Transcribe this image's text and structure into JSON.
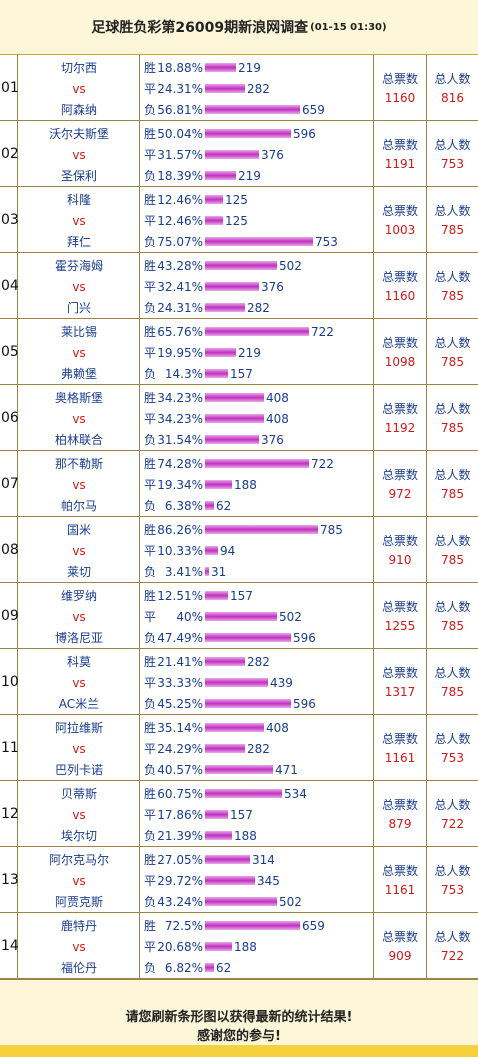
{
  "header": {
    "title": "足球胜负彩第26009期新浪网调查",
    "time": "(01-15 01:30)"
  },
  "labels": {
    "win": "胜",
    "draw": "平",
    "lose": "负",
    "vs": "vs",
    "total_votes": "总票数",
    "total_people": "总人数"
  },
  "matches": [
    {
      "num": "01",
      "home": "切尔西",
      "away": "阿森纳",
      "win_pct": "18.88%",
      "win_n": 219,
      "draw_pct": "24.31%",
      "draw_n": 282,
      "lose_pct": "56.81%",
      "lose_n": 659,
      "total": "1160",
      "people": "816"
    },
    {
      "num": "02",
      "home": "沃尔夫斯堡",
      "away": "圣保利",
      "win_pct": "50.04%",
      "win_n": 596,
      "draw_pct": "31.57%",
      "draw_n": 376,
      "lose_pct": "18.39%",
      "lose_n": 219,
      "total": "1191",
      "people": "753"
    },
    {
      "num": "03",
      "home": "科隆",
      "away": "拜仁",
      "win_pct": "12.46%",
      "win_n": 125,
      "draw_pct": "12.46%",
      "draw_n": 125,
      "lose_pct": "75.07%",
      "lose_n": 753,
      "total": "1003",
      "people": "785"
    },
    {
      "num": "04",
      "home": "霍芬海姆",
      "away": "门兴",
      "win_pct": "43.28%",
      "win_n": 502,
      "draw_pct": "32.41%",
      "draw_n": 376,
      "lose_pct": "24.31%",
      "lose_n": 282,
      "total": "1160",
      "people": "785"
    },
    {
      "num": "05",
      "home": "莱比锡",
      "away": "弗赖堡",
      "win_pct": "65.76%",
      "win_n": 722,
      "draw_pct": "19.95%",
      "draw_n": 219,
      "lose_pct": "14.3%",
      "lose_n": 157,
      "total": "1098",
      "people": "785"
    },
    {
      "num": "06",
      "home": "奥格斯堡",
      "away": "柏林联合",
      "win_pct": "34.23%",
      "win_n": 408,
      "draw_pct": "34.23%",
      "draw_n": 408,
      "lose_pct": "31.54%",
      "lose_n": 376,
      "total": "1192",
      "people": "785"
    },
    {
      "num": "07",
      "home": "那不勒斯",
      "away": "帕尔马",
      "win_pct": "74.28%",
      "win_n": 722,
      "draw_pct": "19.34%",
      "draw_n": 188,
      "lose_pct": "6.38%",
      "lose_n": 62,
      "total": "972",
      "people": "785"
    },
    {
      "num": "08",
      "home": "国米",
      "away": "莱切",
      "win_pct": "86.26%",
      "win_n": 785,
      "draw_pct": "10.33%",
      "draw_n": 94,
      "lose_pct": "3.41%",
      "lose_n": 31,
      "total": "910",
      "people": "785"
    },
    {
      "num": "09",
      "home": "维罗纳",
      "away": "博洛尼亚",
      "win_pct": "12.51%",
      "win_n": 157,
      "draw_pct": "40%",
      "draw_n": 502,
      "lose_pct": "47.49%",
      "lose_n": 596,
      "total": "1255",
      "people": "785"
    },
    {
      "num": "10",
      "home": "科莫",
      "away": "AC米兰",
      "win_pct": "21.41%",
      "win_n": 282,
      "draw_pct": "33.33%",
      "draw_n": 439,
      "lose_pct": "45.25%",
      "lose_n": 596,
      "total": "1317",
      "people": "785"
    },
    {
      "num": "11",
      "home": "阿拉维斯",
      "away": "巴列卡诺",
      "win_pct": "35.14%",
      "win_n": 408,
      "draw_pct": "24.29%",
      "draw_n": 282,
      "lose_pct": "40.57%",
      "lose_n": 471,
      "total": "1161",
      "people": "753"
    },
    {
      "num": "12",
      "home": "贝蒂斯",
      "away": "埃尔切",
      "win_pct": "60.75%",
      "win_n": 534,
      "draw_pct": "17.86%",
      "draw_n": 157,
      "lose_pct": "21.39%",
      "lose_n": 188,
      "total": "879",
      "people": "722"
    },
    {
      "num": "13",
      "home": "阿尔克马尔",
      "away": "阿贾克斯",
      "win_pct": "27.05%",
      "win_n": 314,
      "draw_pct": "29.72%",
      "draw_n": 345,
      "lose_pct": "43.24%",
      "lose_n": 502,
      "total": "1161",
      "people": "753"
    },
    {
      "num": "14",
      "home": "鹿特丹",
      "away": "福伦丹",
      "win_pct": "72.5%",
      "win_n": 659,
      "draw_pct": "20.68%",
      "draw_n": 188,
      "lose_pct": "6.82%",
      "lose_n": 62,
      "total": "909",
      "people": "722"
    }
  ],
  "footer": {
    "line1": "请您刷新条形图以获得最新的统计结果!",
    "line2": "感谢您的参与!"
  }
}
